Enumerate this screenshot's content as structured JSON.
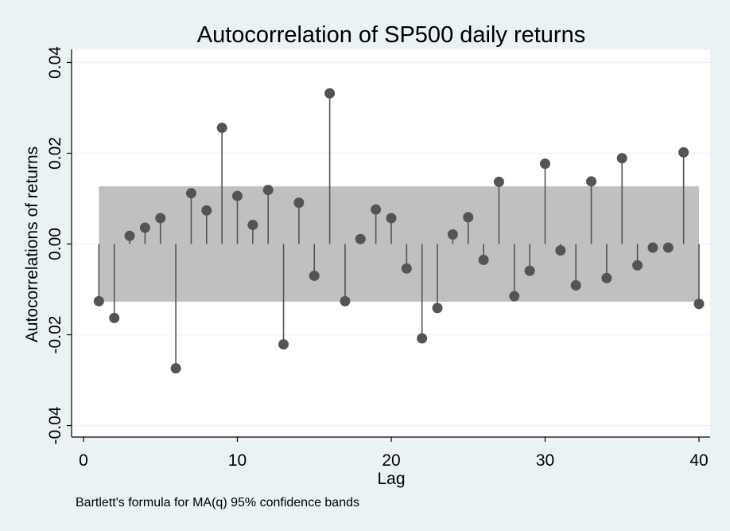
{
  "chart_data": {
    "type": "scatter",
    "style": "stem",
    "title": "Autocorrelation of SP500 daily returns",
    "xlabel": "Lag",
    "ylabel": "Autocorrelations of returns",
    "note": "Bartlett's formula for MA(q) 95% confidence bands",
    "xlim": [
      0,
      40
    ],
    "ylim": [
      -0.04,
      0.04
    ],
    "x_ticks": [
      "0",
      "10",
      "20",
      "30",
      "40"
    ],
    "y_ticks": [
      "-0.04",
      "-0.02",
      "0.00",
      "0.02",
      "0.04"
    ],
    "grid": true,
    "confidence_band": {
      "lower": -0.0127,
      "upper": 0.0127,
      "x_start": 1,
      "x_end": 40
    },
    "x": [
      1,
      2,
      3,
      4,
      5,
      6,
      7,
      8,
      9,
      10,
      11,
      12,
      13,
      14,
      15,
      16,
      17,
      18,
      19,
      20,
      21,
      22,
      23,
      24,
      25,
      26,
      27,
      28,
      29,
      30,
      31,
      32,
      33,
      34,
      35,
      36,
      37,
      38,
      39,
      40
    ],
    "values": [
      -0.0126,
      -0.0163,
      0.0018,
      0.0036,
      0.0057,
      -0.0274,
      0.0112,
      0.0074,
      0.0256,
      0.0106,
      0.0042,
      0.0119,
      -0.0221,
      0.0091,
      -0.007,
      0.0332,
      -0.0126,
      0.0011,
      0.0076,
      0.0057,
      -0.0054,
      -0.0208,
      -0.0141,
      0.0021,
      0.0059,
      -0.0035,
      0.0137,
      -0.0115,
      -0.0059,
      0.0177,
      -0.0014,
      -0.0091,
      0.0138,
      -0.0075,
      0.0189,
      -0.0047,
      -0.0008,
      -0.0008,
      0.0202,
      -0.0132
    ],
    "colors": {
      "background": "#eaf2f3",
      "plot_area": "#ffffff",
      "band": "#c0c0c0",
      "marker": "#545454",
      "grid": "#eaf2f3"
    }
  }
}
